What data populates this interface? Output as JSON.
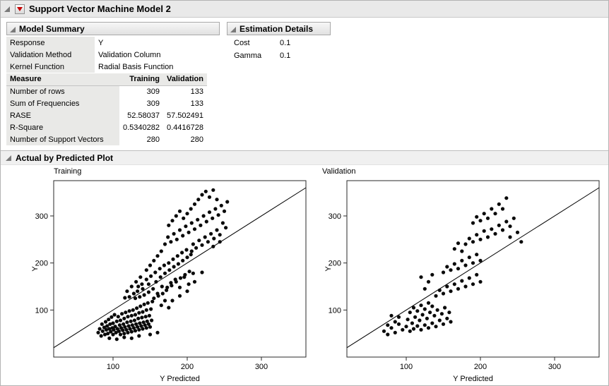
{
  "window": {
    "title": "Support Vector Machine Model 2"
  },
  "model_summary": {
    "title": "Model Summary",
    "info": [
      {
        "label": "Response",
        "value": "Y"
      },
      {
        "label": "Validation Method",
        "value": "Validation Column"
      },
      {
        "label": "Kernel Function",
        "value": "Radial Basis Function"
      }
    ],
    "table": {
      "headers": [
        "Measure",
        "Training",
        "Validation"
      ],
      "rows": [
        [
          "Number of rows",
          "309",
          "133"
        ],
        [
          "Sum of Frequencies",
          "309",
          "133"
        ],
        [
          "RASE",
          "52.58037",
          "57.502491"
        ],
        [
          "R-Square",
          "0.5340282",
          "0.4416728"
        ],
        [
          "Number of Support Vectors",
          "280",
          "280"
        ]
      ]
    }
  },
  "estimation_details": {
    "title": "Estimation Details",
    "rows": [
      {
        "label": "Cost",
        "value": "0.1"
      },
      {
        "label": "Gamma",
        "value": "0.1"
      }
    ]
  },
  "plot_section": {
    "title": "Actual by Predicted Plot"
  },
  "colors": {
    "point": "#0a0a0a",
    "frame": "#2a2a2a",
    "accent_red": "#c40000"
  },
  "chart_data": [
    {
      "type": "scatter",
      "title": "Training",
      "xlabel": "Y Predicted",
      "ylabel": "Y",
      "xlim": [
        20,
        360
      ],
      "ylim": [
        0,
        375
      ],
      "xticks": [
        100,
        200,
        300
      ],
      "yticks": [
        100,
        200,
        300
      ],
      "identity_line": true,
      "points": [
        [
          80,
          52
        ],
        [
          82,
          60
        ],
        [
          84,
          45
        ],
        [
          85,
          70
        ],
        [
          86,
          55
        ],
        [
          88,
          63
        ],
        [
          89,
          48
        ],
        [
          90,
          75
        ],
        [
          91,
          58
        ],
        [
          92,
          66
        ],
        [
          93,
          50
        ],
        [
          94,
          80
        ],
        [
          95,
          60
        ],
        [
          96,
          70
        ],
        [
          97,
          54
        ],
        [
          98,
          85
        ],
        [
          99,
          62
        ],
        [
          100,
          48
        ],
        [
          100,
          72
        ],
        [
          101,
          58
        ],
        [
          102,
          90
        ],
        [
          103,
          65
        ],
        [
          104,
          52
        ],
        [
          105,
          76
        ],
        [
          106,
          60
        ],
        [
          107,
          86
        ],
        [
          108,
          55
        ],
        [
          109,
          68
        ],
        [
          110,
          48
        ],
        [
          110,
          78
        ],
        [
          111,
          62
        ],
        [
          112,
          92
        ],
        [
          113,
          57
        ],
        [
          114,
          70
        ],
        [
          115,
          50
        ],
        [
          115,
          82
        ],
        [
          116,
          64
        ],
        [
          117,
          95
        ],
        [
          118,
          58
        ],
        [
          119,
          74
        ],
        [
          120,
          52
        ],
        [
          120,
          86
        ],
        [
          121,
          66
        ],
        [
          122,
          98
        ],
        [
          123,
          60
        ],
        [
          124,
          76
        ],
        [
          125,
          54
        ],
        [
          125,
          88
        ],
        [
          126,
          68
        ],
        [
          127,
          100
        ],
        [
          128,
          62
        ],
        [
          129,
          78
        ],
        [
          130,
          56
        ],
        [
          130,
          90
        ],
        [
          131,
          70
        ],
        [
          132,
          104
        ],
        [
          133,
          64
        ],
        [
          134,
          82
        ],
        [
          135,
          58
        ],
        [
          135,
          94
        ],
        [
          136,
          72
        ],
        [
          137,
          108
        ],
        [
          138,
          66
        ],
        [
          139,
          84
        ],
        [
          140,
          60
        ],
        [
          140,
          96
        ],
        [
          141,
          74
        ],
        [
          142,
          112
        ],
        [
          143,
          68
        ],
        [
          144,
          86
        ],
        [
          145,
          62
        ],
        [
          145,
          100
        ],
        [
          146,
          76
        ],
        [
          147,
          115
        ],
        [
          148,
          70
        ],
        [
          149,
          88
        ],
        [
          150,
          64
        ],
        [
          151,
          102
        ],
        [
          152,
          78
        ],
        [
          153,
          118
        ],
        [
          130,
          125
        ],
        [
          133,
          140
        ],
        [
          136,
          128
        ],
        [
          139,
          155
        ],
        [
          142,
          132
        ],
        [
          145,
          165
        ],
        [
          148,
          138
        ],
        [
          151,
          172
        ],
        [
          154,
          145
        ],
        [
          157,
          180
        ],
        [
          160,
          135
        ],
        [
          163,
          188
        ],
        [
          166,
          150
        ],
        [
          169,
          195
        ],
        [
          172,
          142
        ],
        [
          175,
          200
        ],
        [
          178,
          158
        ],
        [
          181,
          208
        ],
        [
          184,
          165
        ],
        [
          187,
          215
        ],
        [
          190,
          148
        ],
        [
          193,
          222
        ],
        [
          196,
          170
        ],
        [
          199,
          228
        ],
        [
          202,
          155
        ],
        [
          205,
          218
        ],
        [
          208,
          178
        ],
        [
          155,
          125
        ],
        [
          158,
          160
        ],
        [
          161,
          130
        ],
        [
          164,
          170
        ],
        [
          167,
          135
        ],
        [
          170,
          178
        ],
        [
          173,
          148
        ],
        [
          176,
          185
        ],
        [
          179,
          152
        ],
        [
          182,
          192
        ],
        [
          185,
          160
        ],
        [
          188,
          198
        ],
        [
          191,
          168
        ],
        [
          194,
          205
        ],
        [
          197,
          175
        ],
        [
          200,
          212
        ],
        [
          203,
          182
        ],
        [
          206,
          225
        ],
        [
          148,
          155
        ],
        [
          145,
          185
        ],
        [
          150,
          195
        ],
        [
          155,
          205
        ],
        [
          160,
          215
        ],
        [
          165,
          225
        ],
        [
          140,
          145
        ],
        [
          137,
          170
        ],
        [
          134,
          150
        ],
        [
          131,
          160
        ],
        [
          128,
          135
        ],
        [
          125,
          150
        ],
        [
          122,
          128
        ],
        [
          119,
          140
        ],
        [
          116,
          126
        ],
        [
          170,
          240
        ],
        [
          174,
          255
        ],
        [
          178,
          245
        ],
        [
          182,
          262
        ],
        [
          186,
          250
        ],
        [
          190,
          270
        ],
        [
          194,
          258
        ],
        [
          198,
          278
        ],
        [
          202,
          265
        ],
        [
          206,
          285
        ],
        [
          210,
          272
        ],
        [
          214,
          292
        ],
        [
          218,
          280
        ],
        [
          222,
          300
        ],
        [
          226,
          288
        ],
        [
          230,
          308
        ],
        [
          234,
          295
        ],
        [
          238,
          315
        ],
        [
          242,
          302
        ],
        [
          246,
          322
        ],
        [
          250,
          310
        ],
        [
          254,
          330
        ],
        [
          195,
          295
        ],
        [
          200,
          305
        ],
        [
          205,
          315
        ],
        [
          210,
          325
        ],
        [
          215,
          335
        ],
        [
          220,
          345
        ],
        [
          225,
          352
        ],
        [
          230,
          340
        ],
        [
          235,
          355
        ],
        [
          240,
          335
        ],
        [
          190,
          310
        ],
        [
          185,
          300
        ],
        [
          180,
          290
        ],
        [
          175,
          280
        ],
        [
          208,
          240
        ],
        [
          212,
          232
        ],
        [
          216,
          248
        ],
        [
          220,
          238
        ],
        [
          224,
          255
        ],
        [
          228,
          245
        ],
        [
          232,
          262
        ],
        [
          236,
          252
        ],
        [
          240,
          270
        ],
        [
          244,
          260
        ],
        [
          248,
          285
        ],
        [
          252,
          275
        ],
        [
          244,
          245
        ],
        [
          235,
          235
        ],
        [
          180,
          120
        ],
        [
          190,
          130
        ],
        [
          200,
          140
        ],
        [
          210,
          160
        ],
        [
          220,
          180
        ],
        [
          165,
          110
        ],
        [
          170,
          120
        ],
        [
          175,
          105
        ],
        [
          95,
          40
        ],
        [
          105,
          38
        ],
        [
          115,
          42
        ],
        [
          125,
          40
        ],
        [
          135,
          45
        ],
        [
          150,
          48
        ],
        [
          160,
          52
        ]
      ]
    },
    {
      "type": "scatter",
      "title": "Validation",
      "xlabel": "Y Predicted",
      "ylabel": "Y",
      "xlim": [
        20,
        360
      ],
      "ylim": [
        0,
        375
      ],
      "xticks": [
        100,
        200,
        300
      ],
      "yticks": [
        100,
        200,
        300
      ],
      "identity_line": true,
      "points": [
        [
          70,
          55
        ],
        [
          75,
          48
        ],
        [
          80,
          62
        ],
        [
          85,
          52
        ],
        [
          90,
          70
        ],
        [
          95,
          58
        ],
        [
          100,
          65
        ],
        [
          102,
          80
        ],
        [
          105,
          55
        ],
        [
          108,
          72
        ],
        [
          110,
          60
        ],
        [
          112,
          85
        ],
        [
          115,
          66
        ],
        [
          118,
          78
        ],
        [
          120,
          58
        ],
        [
          122,
          90
        ],
        [
          125,
          68
        ],
        [
          128,
          82
        ],
        [
          130,
          62
        ],
        [
          132,
          95
        ],
        [
          135,
          72
        ],
        [
          138,
          88
        ],
        [
          140,
          65
        ],
        [
          142,
          100
        ],
        [
          145,
          78
        ],
        [
          148,
          92
        ],
        [
          150,
          70
        ],
        [
          152,
          105
        ],
        [
          155,
          82
        ],
        [
          158,
          95
        ],
        [
          160,
          75
        ],
        [
          105,
          95
        ],
        [
          110,
          105
        ],
        [
          115,
          98
        ],
        [
          120,
          110
        ],
        [
          125,
          102
        ],
        [
          130,
          115
        ],
        [
          135,
          108
        ],
        [
          90,
          85
        ],
        [
          85,
          75
        ],
        [
          80,
          88
        ],
        [
          75,
          68
        ],
        [
          140,
          130
        ],
        [
          145,
          142
        ],
        [
          150,
          135
        ],
        [
          155,
          150
        ],
        [
          160,
          140
        ],
        [
          165,
          155
        ],
        [
          170,
          145
        ],
        [
          175,
          162
        ],
        [
          180,
          150
        ],
        [
          185,
          168
        ],
        [
          190,
          155
        ],
        [
          195,
          175
        ],
        [
          200,
          160
        ],
        [
          150,
          180
        ],
        [
          155,
          192
        ],
        [
          160,
          185
        ],
        [
          165,
          198
        ],
        [
          170,
          188
        ],
        [
          175,
          205
        ],
        [
          180,
          195
        ],
        [
          185,
          212
        ],
        [
          190,
          200
        ],
        [
          195,
          218
        ],
        [
          200,
          205
        ],
        [
          130,
          160
        ],
        [
          135,
          175
        ],
        [
          125,
          145
        ],
        [
          120,
          170
        ],
        [
          180,
          240
        ],
        [
          185,
          252
        ],
        [
          190,
          245
        ],
        [
          195,
          260
        ],
        [
          200,
          250
        ],
        [
          205,
          268
        ],
        [
          210,
          255
        ],
        [
          215,
          272
        ],
        [
          220,
          262
        ],
        [
          225,
          280
        ],
        [
          230,
          270
        ],
        [
          235,
          288
        ],
        [
          240,
          278
        ],
        [
          245,
          295
        ],
        [
          190,
          285
        ],
        [
          195,
          298
        ],
        [
          200,
          290
        ],
        [
          205,
          305
        ],
        [
          210,
          295
        ],
        [
          215,
          315
        ],
        [
          220,
          305
        ],
        [
          225,
          325
        ],
        [
          230,
          315
        ],
        [
          235,
          338
        ],
        [
          240,
          255
        ],
        [
          250,
          265
        ],
        [
          255,
          245
        ],
        [
          165,
          230
        ],
        [
          170,
          242
        ],
        [
          175,
          225
        ]
      ]
    }
  ]
}
